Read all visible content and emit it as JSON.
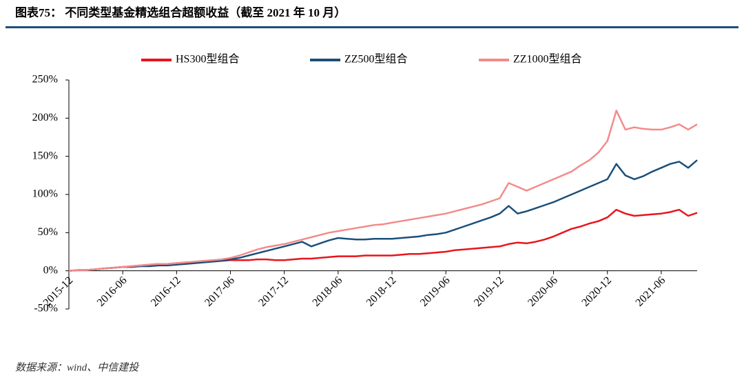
{
  "chart_data": {
    "type": "line",
    "title": "图表75：  不同类型基金精选组合超额收益（截至 2021 年 10 月）",
    "source": "数据来源：wind、中信建投",
    "x": [
      "2015-12",
      "2016-01",
      "2016-02",
      "2016-03",
      "2016-04",
      "2016-05",
      "2016-06",
      "2016-07",
      "2016-08",
      "2016-09",
      "2016-10",
      "2016-11",
      "2016-12",
      "2017-01",
      "2017-02",
      "2017-03",
      "2017-04",
      "2017-05",
      "2017-06",
      "2017-07",
      "2017-08",
      "2017-09",
      "2017-10",
      "2017-11",
      "2017-12",
      "2018-01",
      "2018-02",
      "2018-03",
      "2018-04",
      "2018-05",
      "2018-06",
      "2018-07",
      "2018-08",
      "2018-09",
      "2018-10",
      "2018-11",
      "2018-12",
      "2019-01",
      "2019-02",
      "2019-03",
      "2019-04",
      "2019-05",
      "2019-06",
      "2019-07",
      "2019-08",
      "2019-09",
      "2019-10",
      "2019-11",
      "2019-12",
      "2020-01",
      "2020-02",
      "2020-03",
      "2020-04",
      "2020-05",
      "2020-06",
      "2020-07",
      "2020-08",
      "2020-09",
      "2020-10",
      "2020-11",
      "2020-12",
      "2021-01",
      "2021-02",
      "2021-03",
      "2021-04",
      "2021-05",
      "2021-06",
      "2021-07",
      "2021-08",
      "2021-09",
      "2021-10"
    ],
    "xticks": [
      "2015-12",
      "2016-06",
      "2016-12",
      "2017-06",
      "2017-12",
      "2018-06",
      "2018-12",
      "2019-06",
      "2019-12",
      "2020-06",
      "2020-12",
      "2021-06"
    ],
    "series": [
      {
        "name": "HS300型组合",
        "color": "#e8141c",
        "values": [
          0,
          1,
          1,
          2,
          3,
          4,
          5,
          6,
          7,
          8,
          9,
          9,
          10,
          11,
          11,
          12,
          13,
          13,
          14,
          14,
          14,
          15,
          15,
          14,
          14,
          15,
          16,
          16,
          17,
          18,
          19,
          19,
          19,
          20,
          20,
          20,
          20,
          21,
          22,
          22,
          23,
          24,
          25,
          27,
          28,
          29,
          30,
          31,
          32,
          35,
          37,
          36,
          38,
          41,
          45,
          50,
          55,
          58,
          62,
          65,
          70,
          80,
          75,
          72,
          73,
          74,
          75,
          77,
          80,
          72,
          76
        ]
      },
      {
        "name": "ZZ500型组合",
        "color": "#1b4f7a",
        "values": [
          0,
          1,
          1,
          2,
          3,
          4,
          5,
          5,
          6,
          6,
          7,
          7,
          8,
          9,
          10,
          11,
          12,
          13,
          15,
          17,
          20,
          23,
          26,
          29,
          32,
          35,
          38,
          32,
          36,
          40,
          43,
          42,
          41,
          41,
          42,
          42,
          42,
          43,
          44,
          45,
          47,
          48,
          50,
          54,
          58,
          62,
          66,
          70,
          75,
          85,
          75,
          78,
          82,
          86,
          90,
          95,
          100,
          105,
          110,
          115,
          120,
          140,
          125,
          120,
          124,
          130,
          135,
          140,
          143,
          135,
          145
        ]
      },
      {
        "name": "ZZ1000型组合",
        "color": "#f48a8a",
        "values": [
          0,
          1,
          1,
          2,
          3,
          4,
          5,
          6,
          7,
          8,
          9,
          9,
          10,
          11,
          12,
          13,
          14,
          15,
          17,
          20,
          24,
          28,
          31,
          33,
          35,
          38,
          41,
          44,
          47,
          50,
          52,
          54,
          56,
          58,
          60,
          61,
          63,
          65,
          67,
          69,
          71,
          73,
          75,
          78,
          81,
          84,
          87,
          91,
          95,
          115,
          110,
          105,
          110,
          115,
          120,
          125,
          130,
          138,
          145,
          155,
          170,
          210,
          185,
          188,
          186,
          185,
          185,
          188,
          192,
          185,
          192
        ]
      }
    ],
    "ylim": [
      -50,
      250
    ],
    "yticks": [
      {
        "value": -50,
        "label": "-50%"
      },
      {
        "value": 0,
        "label": "0%"
      },
      {
        "value": 50,
        "label": "50%"
      },
      {
        "value": 100,
        "label": "100%"
      },
      {
        "value": 150,
        "label": "150%"
      },
      {
        "value": 200,
        "label": "200%"
      },
      {
        "value": 250,
        "label": "250%"
      }
    ]
  }
}
